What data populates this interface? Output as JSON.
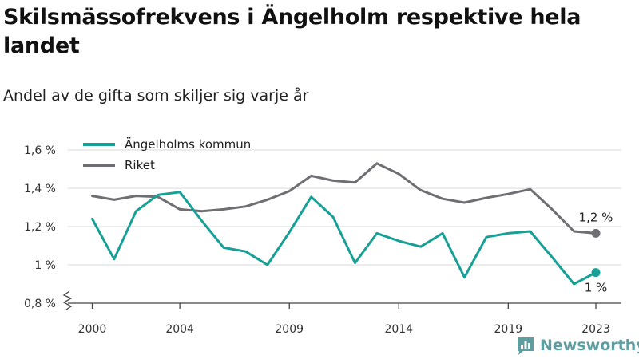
{
  "title": "Skilsmässofrekvens i Ängelholm respektive hela landet",
  "subtitle": "Andel av de gifta som skiljer sig varje år",
  "brand": {
    "name": "Newsworthy",
    "icon": "newsworthy-logo-icon",
    "color": "#5f9ea0"
  },
  "chart_data": {
    "type": "line",
    "x": [
      2000,
      2001,
      2002,
      2003,
      2004,
      2005,
      2006,
      2007,
      2008,
      2009,
      2010,
      2011,
      2012,
      2013,
      2014,
      2015,
      2016,
      2017,
      2018,
      2019,
      2020,
      2021,
      2022,
      2023
    ],
    "x_ticks": [
      2000,
      2004,
      2009,
      2014,
      2019,
      2023
    ],
    "x_tick_labels": [
      "2000",
      "2004",
      "2009",
      "2014",
      "2019",
      "2023"
    ],
    "y_ticks": [
      0.8,
      1.0,
      1.2,
      1.4,
      1.6
    ],
    "y_tick_labels": [
      "0,8 %",
      "1 %",
      "1,2 %",
      "1,4 %",
      "1,6 %"
    ],
    "ylim": [
      0.8,
      1.6
    ],
    "y_axis_break": true,
    "grid": "horizontal",
    "legend": "top-left",
    "series": [
      {
        "name": "Ängelholms kommun",
        "color": "#16a096",
        "values": [
          1.24,
          1.03,
          1.28,
          1.365,
          1.38,
          1.23,
          1.09,
          1.07,
          1.0,
          1.17,
          1.355,
          1.25,
          1.01,
          1.165,
          1.125,
          1.095,
          1.165,
          0.935,
          1.145,
          1.165,
          1.175,
          1.04,
          0.9,
          0.96
        ],
        "end_label": "1 %"
      },
      {
        "name": "Riket",
        "color": "#6e6e73",
        "values": [
          1.36,
          1.34,
          1.36,
          1.355,
          1.29,
          1.28,
          1.29,
          1.305,
          1.34,
          1.385,
          1.465,
          1.44,
          1.43,
          1.53,
          1.475,
          1.39,
          1.345,
          1.325,
          1.35,
          1.37,
          1.395,
          1.29,
          1.175,
          1.165
        ],
        "end_label": "1,2 %"
      }
    ]
  }
}
